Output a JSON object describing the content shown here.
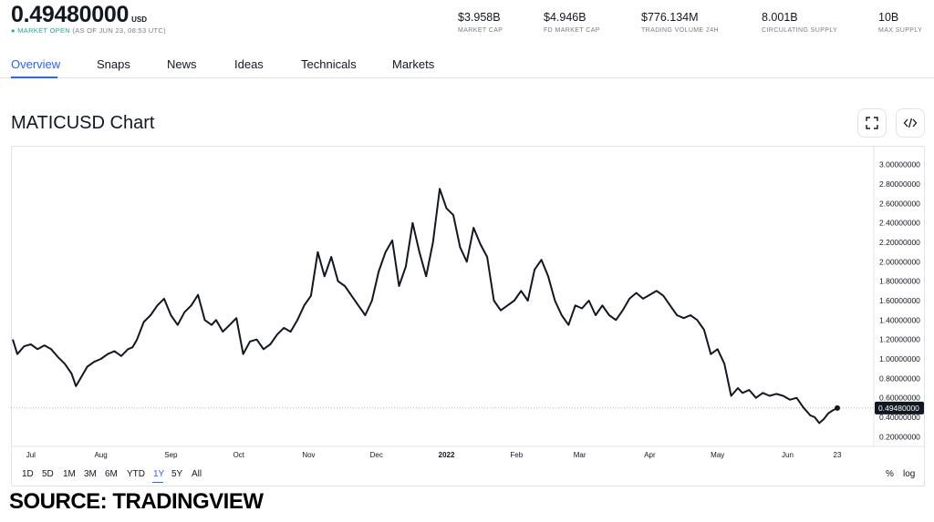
{
  "header": {
    "price": "0.49480000",
    "currency": "USD",
    "market_status": "MARKET OPEN",
    "as_of": "(AS OF JUN 23, 08:53 UTC)",
    "stats": [
      {
        "value": "$3.958B",
        "label": "MARKET CAP"
      },
      {
        "value": "$4.946B",
        "label": "FD MARKET CAP"
      },
      {
        "value": "$776.134M",
        "label": "TRADING VOLUME 24H"
      },
      {
        "value": "8.001B",
        "label": "CIRCULATING SUPPLY"
      },
      {
        "value": "10B",
        "label": "MAX SUPPLY"
      }
    ]
  },
  "tabs": [
    "Overview",
    "Snaps",
    "News",
    "Ideas",
    "Technicals",
    "Markets"
  ],
  "active_tab": "Overview",
  "chart_title": "MATICUSD Chart",
  "icons": {
    "fullscreen": "fullscreen-icon",
    "embed": "code-embed-icon"
  },
  "ranges": [
    "1D",
    "5D",
    "1M",
    "3M",
    "6M",
    "YTD",
    "1Y",
    "5Y",
    "All"
  ],
  "active_range": "1Y",
  "scale_controls": {
    "percent": "%",
    "log": "log"
  },
  "source_caption": "SOURCE: TRADINGVIEW",
  "colors": {
    "accent": "#2962ff",
    "line": "#131722",
    "grid": "#e0e3eb",
    "label": "#787b86",
    "open": "#22ab94"
  },
  "chart_data": {
    "type": "line",
    "symbol": "MATICUSD",
    "x_ticks": [
      "Jul",
      "Aug",
      "Sep",
      "Oct",
      "Nov",
      "Dec",
      "2022",
      "Feb",
      "Mar",
      "Apr",
      "May",
      "Jun",
      "23"
    ],
    "y_ticks": [
      "0.20000000",
      "0.40000000",
      "0.60000000",
      "0.80000000",
      "1.00000000",
      "1.20000000",
      "1.40000000",
      "1.60000000",
      "1.80000000",
      "2.00000000",
      "2.20000000",
      "2.40000000",
      "2.60000000",
      "2.80000000",
      "3.00000000"
    ],
    "ylim": [
      0.1,
      3.1
    ],
    "last_value_label": "0.49480000",
    "last_value": 0.4948,
    "x": [
      "2021-06-23",
      "2021-06-25",
      "2021-06-28",
      "2021-07-01",
      "2021-07-04",
      "2021-07-07",
      "2021-07-10",
      "2021-07-13",
      "2021-07-16",
      "2021-07-19",
      "2021-07-21",
      "2021-07-23",
      "2021-07-26",
      "2021-07-29",
      "2021-08-01",
      "2021-08-04",
      "2021-08-07",
      "2021-08-10",
      "2021-08-13",
      "2021-08-15",
      "2021-08-17",
      "2021-08-20",
      "2021-08-23",
      "2021-08-26",
      "2021-08-29",
      "2021-09-01",
      "2021-09-04",
      "2021-09-07",
      "2021-09-10",
      "2021-09-13",
      "2021-09-16",
      "2021-09-19",
      "2021-09-21",
      "2021-09-24",
      "2021-09-27",
      "2021-09-30",
      "2021-10-03",
      "2021-10-06",
      "2021-10-09",
      "2021-10-12",
      "2021-10-15",
      "2021-10-18",
      "2021-10-21",
      "2021-10-24",
      "2021-10-27",
      "2021-10-30",
      "2021-11-02",
      "2021-11-05",
      "2021-11-08",
      "2021-11-11",
      "2021-11-14",
      "2021-11-17",
      "2021-11-20",
      "2021-11-23",
      "2021-11-26",
      "2021-11-29",
      "2021-12-02",
      "2021-12-05",
      "2021-12-08",
      "2021-12-11",
      "2021-12-14",
      "2021-12-17",
      "2021-12-20",
      "2021-12-23",
      "2021-12-26",
      "2021-12-29",
      "2022-01-01",
      "2022-01-04",
      "2022-01-07",
      "2022-01-10",
      "2022-01-13",
      "2022-01-16",
      "2022-01-19",
      "2022-01-22",
      "2022-01-25",
      "2022-01-28",
      "2022-01-31",
      "2022-02-03",
      "2022-02-06",
      "2022-02-09",
      "2022-02-12",
      "2022-02-15",
      "2022-02-18",
      "2022-02-21",
      "2022-02-24",
      "2022-02-27",
      "2022-03-02",
      "2022-03-05",
      "2022-03-08",
      "2022-03-11",
      "2022-03-14",
      "2022-03-17",
      "2022-03-20",
      "2022-03-23",
      "2022-03-26",
      "2022-03-29",
      "2022-04-01",
      "2022-04-04",
      "2022-04-07",
      "2022-04-10",
      "2022-04-13",
      "2022-04-16",
      "2022-04-19",
      "2022-04-22",
      "2022-04-25",
      "2022-04-28",
      "2022-05-01",
      "2022-05-04",
      "2022-05-07",
      "2022-05-10",
      "2022-05-12",
      "2022-05-15",
      "2022-05-18",
      "2022-05-21",
      "2022-05-24",
      "2022-05-27",
      "2022-05-30",
      "2022-06-02",
      "2022-06-05",
      "2022-06-08",
      "2022-06-11",
      "2022-06-13",
      "2022-06-15",
      "2022-06-17",
      "2022-06-19",
      "2022-06-21",
      "2022-06-23"
    ],
    "close": [
      1.2,
      1.05,
      1.13,
      1.15,
      1.1,
      1.14,
      1.1,
      1.02,
      0.95,
      0.85,
      0.72,
      0.8,
      0.92,
      0.97,
      1.0,
      1.05,
      1.08,
      1.03,
      1.1,
      1.12,
      1.2,
      1.38,
      1.45,
      1.55,
      1.62,
      1.45,
      1.35,
      1.48,
      1.55,
      1.66,
      1.4,
      1.35,
      1.4,
      1.28,
      1.35,
      1.42,
      1.05,
      1.18,
      1.2,
      1.1,
      1.15,
      1.25,
      1.32,
      1.28,
      1.4,
      1.55,
      1.65,
      2.1,
      1.85,
      2.05,
      1.8,
      1.75,
      1.65,
      1.55,
      1.45,
      1.6,
      1.9,
      2.1,
      2.22,
      1.75,
      1.95,
      2.4,
      2.1,
      1.85,
      2.2,
      2.75,
      2.55,
      2.48,
      2.15,
      2.0,
      2.35,
      2.18,
      2.05,
      1.6,
      1.5,
      1.55,
      1.6,
      1.7,
      1.6,
      1.92,
      2.02,
      1.85,
      1.6,
      1.45,
      1.35,
      1.55,
      1.52,
      1.6,
      1.45,
      1.55,
      1.45,
      1.4,
      1.5,
      1.62,
      1.68,
      1.62,
      1.66,
      1.7,
      1.65,
      1.55,
      1.45,
      1.42,
      1.45,
      1.4,
      1.3,
      1.05,
      1.1,
      0.95,
      0.62,
      0.7,
      0.65,
      0.68,
      0.6,
      0.65,
      0.62,
      0.64,
      0.62,
      0.58,
      0.6,
      0.5,
      0.42,
      0.4,
      0.34,
      0.38,
      0.44,
      0.47,
      0.4948
    ]
  }
}
